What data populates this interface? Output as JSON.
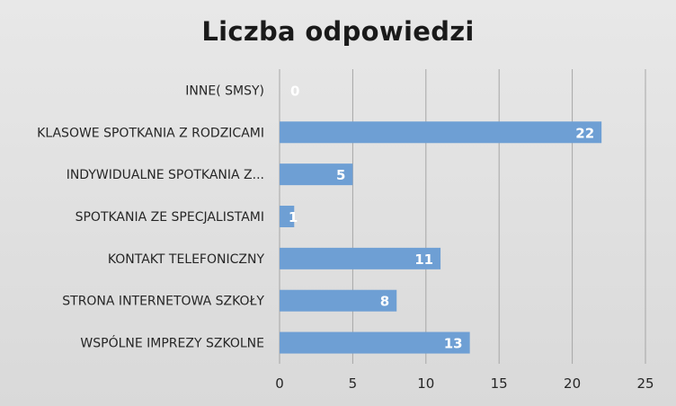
{
  "chart_data": {
    "type": "bar",
    "orientation": "horizontal",
    "title": "Liczba odpowiedzi",
    "categories": [
      "INNE( SMSY)",
      "KLASOWE SPOTKANIA  Z RODZICAMI",
      "INDYWIDUALNE SPOTKANIA Z...",
      "SPOTKANIA ZE SPECJALISTAMI",
      "KONTAKT TELEFONICZNY",
      "STRONA INTERNETOWA SZKOŁY",
      "WSPÓLNE IMPREZY SZKOLNE"
    ],
    "values": [
      0,
      22,
      5,
      1,
      11,
      8,
      13
    ],
    "xlim": [
      0,
      25
    ],
    "xticks": [
      0,
      5,
      10,
      15,
      20,
      25
    ],
    "grid": true,
    "data_labels": true,
    "bar_color": "#6e9fd4",
    "label_color": "#ffffff"
  }
}
